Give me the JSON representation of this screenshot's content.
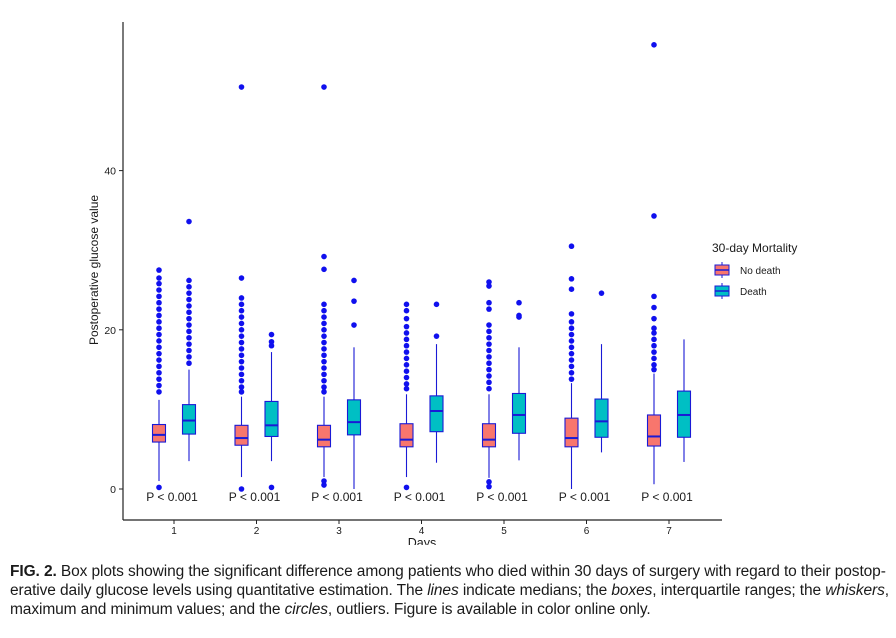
{
  "chart_data": {
    "type": "box",
    "title": "",
    "xlabel": "Days",
    "ylabel": "Postoperative glucose value",
    "ylim": [
      -4,
      58
    ],
    "y_ticks": [
      0,
      20,
      40
    ],
    "categories": [
      "1",
      "2",
      "3",
      "4",
      "5",
      "6",
      "7"
    ],
    "legend": {
      "title": "30-day Mortality",
      "placement": "right",
      "entries": [
        {
          "name": "No death",
          "fill": "#f8766d"
        },
        {
          "name": "Death",
          "fill": "#00bfc4"
        }
      ]
    },
    "stroke_color": "#1a1ad6",
    "series": [
      {
        "name": "No death",
        "boxes": [
          {
            "min": 1.0,
            "q1": 5.9,
            "median": 6.8,
            "q3": 8.1,
            "max": 11.2,
            "outliers": [
              27.5,
              26.5,
              25.8,
              25.0,
              24.2,
              23.4,
              22.6,
              21.8,
              21.0,
              20.2,
              19.4,
              18.6,
              17.8,
              17.0,
              16.2,
              15.4,
              14.6,
              13.8,
              13.0,
              12.2,
              0.2
            ]
          },
          {
            "min": 1.5,
            "q1": 5.5,
            "median": 6.4,
            "q3": 8.0,
            "max": 11.6,
            "outliers": [
              50.5,
              26.5,
              24.0,
              23.2,
              22.4,
              21.6,
              20.8,
              20.0,
              19.2,
              18.4,
              17.6,
              16.8,
              16.0,
              15.2,
              14.4,
              13.6,
              12.8,
              12.2,
              0.0
            ]
          },
          {
            "min": 1.5,
            "q1": 5.3,
            "median": 6.2,
            "q3": 8.0,
            "max": 11.6,
            "outliers": [
              50.5,
              29.2,
              27.6,
              23.2,
              22.4,
              21.6,
              20.8,
              20.0,
              19.2,
              18.4,
              17.6,
              16.8,
              16.0,
              15.2,
              14.4,
              13.6,
              12.8,
              12.2,
              1.0,
              0.5
            ]
          },
          {
            "min": 1.5,
            "q1": 5.3,
            "median": 6.2,
            "q3": 8.2,
            "max": 11.9,
            "outliers": [
              23.2,
              22.4,
              21.4,
              20.4,
              19.6,
              18.8,
              18.0,
              17.2,
              16.4,
              15.6,
              14.8,
              14.0,
              13.2,
              12.6,
              0.2
            ]
          },
          {
            "min": 1.4,
            "q1": 5.3,
            "median": 6.2,
            "q3": 8.2,
            "max": 11.9,
            "outliers": [
              26.0,
              25.5,
              23.4,
              22.6,
              20.6,
              19.8,
              19.0,
              18.2,
              17.4,
              16.6,
              15.8,
              15.0,
              14.2,
              13.4,
              12.6,
              0.9,
              0.3
            ]
          },
          {
            "min": 0.0,
            "q1": 5.3,
            "median": 6.4,
            "q3": 8.9,
            "max": 13.3,
            "outliers": [
              30.5,
              26.4,
              25.1,
              22.0,
              21.0,
              20.2,
              19.4,
              18.6,
              17.8,
              17.0,
              16.2,
              15.4,
              14.6,
              13.8
            ]
          },
          {
            "min": 0.6,
            "q1": 5.4,
            "median": 6.6,
            "q3": 9.3,
            "max": 14.5,
            "outliers": [
              55.8,
              34.3,
              24.2,
              22.8,
              21.4,
              20.2,
              19.6,
              18.8,
              18.0,
              17.2,
              16.4,
              15.6,
              15.0
            ]
          }
        ]
      },
      {
        "name": "Death",
        "boxes": [
          {
            "min": 3.5,
            "q1": 6.9,
            "median": 8.6,
            "q3": 10.6,
            "max": 15.0,
            "outliers": [
              33.6,
              26.2,
              25.4,
              24.6,
              23.8,
              23.0,
              22.2,
              21.4,
              20.6,
              19.8,
              19.0,
              18.2,
              17.4,
              16.6,
              15.8
            ]
          },
          {
            "min": 3.5,
            "q1": 6.6,
            "median": 8.0,
            "q3": 11.0,
            "max": 17.2,
            "outliers": [
              19.4,
              18.5,
              18.0,
              0.2
            ]
          },
          {
            "min": 0.0,
            "q1": 6.8,
            "median": 8.4,
            "q3": 11.2,
            "max": 17.8,
            "outliers": [
              26.2,
              23.6,
              20.6
            ]
          },
          {
            "min": 3.3,
            "q1": 7.2,
            "median": 9.8,
            "q3": 11.7,
            "max": 18.2,
            "outliers": [
              23.2,
              19.2
            ]
          },
          {
            "min": 3.6,
            "q1": 7.0,
            "median": 9.3,
            "q3": 12.0,
            "max": 17.8,
            "outliers": [
              23.4,
              21.8,
              21.6
            ]
          },
          {
            "min": 4.6,
            "q1": 6.5,
            "median": 8.5,
            "q3": 11.3,
            "max": 18.2,
            "outliers": [
              24.6
            ]
          },
          {
            "min": 3.4,
            "q1": 6.5,
            "median": 9.3,
            "q3": 12.3,
            "max": 18.8,
            "outliers": []
          }
        ]
      }
    ],
    "annotations": [
      "P < 0.001",
      "P < 0.001",
      "P < 0.001",
      "P < 0.001",
      "P < 0.001",
      "P < 0.001",
      "P < 0.001"
    ]
  },
  "caption": {
    "label": "FIG. 2.",
    "lines": [
      {
        "parts": [
          {
            "t": " Box plots showing the significant difference among patients who died within 30 days of surgery with regard to their postop-",
            "i": false
          }
        ]
      },
      {
        "parts": [
          {
            "t": "erative daily glucose levels using quantitative estimation. The ",
            "i": false
          },
          {
            "t": "lines",
            "i": true
          },
          {
            "t": " indicate medians; the ",
            "i": false
          },
          {
            "t": "boxes",
            "i": true
          },
          {
            "t": ", interquartile ranges; the ",
            "i": false
          },
          {
            "t": "whiskers",
            "i": true
          },
          {
            "t": ",",
            "i": false
          }
        ]
      },
      {
        "parts": [
          {
            "t": "maximum and minimum values; and the ",
            "i": false
          },
          {
            "t": "circles",
            "i": true
          },
          {
            "t": ", outliers. Figure is available in color online only.",
            "i": false
          }
        ]
      }
    ]
  }
}
